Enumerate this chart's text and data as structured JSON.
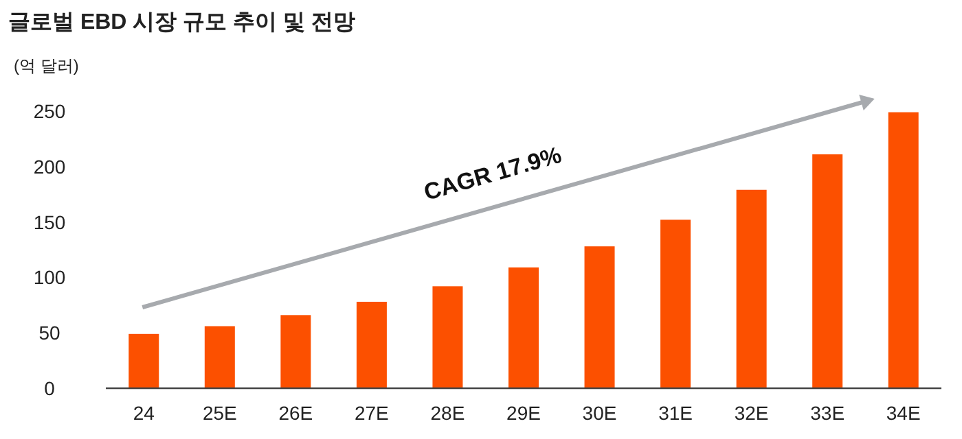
{
  "chart_data": {
    "type": "bar",
    "title": "글로벌 EBD 시장 규모 추이 및 전망",
    "ylabel": "(억 달러)",
    "categories": [
      "24",
      "25E",
      "26E",
      "27E",
      "28E",
      "29E",
      "30E",
      "31E",
      "32E",
      "33E",
      "34E"
    ],
    "values": [
      49,
      56,
      66,
      78,
      92,
      109,
      128,
      152,
      179,
      211,
      249
    ],
    "color": "#fc5000",
    "ylim": [
      0,
      250
    ],
    "yticks": [
      0,
      50,
      100,
      150,
      200,
      250
    ],
    "grid": false,
    "annotations": [
      "CAGR 17.9%"
    ]
  }
}
